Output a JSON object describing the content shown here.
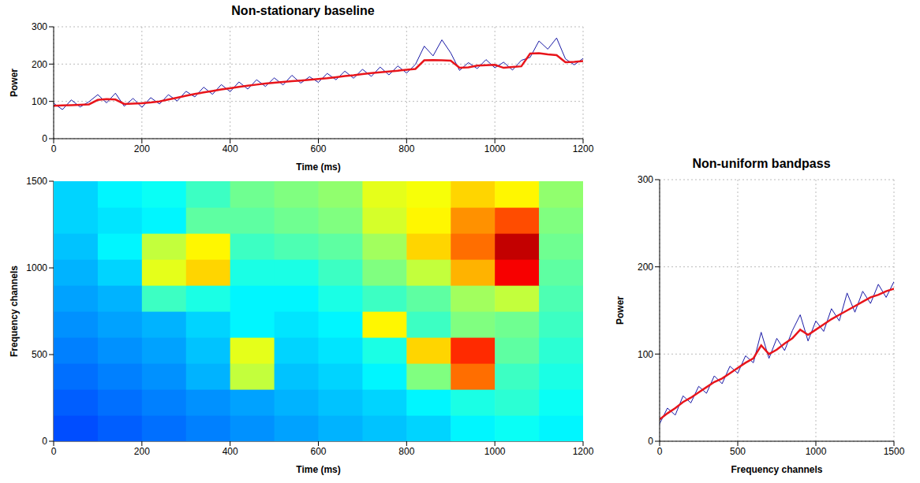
{
  "chart_data": [
    {
      "type": "line",
      "title": "Non-stationary baseline",
      "xlabel": "Time (ms)",
      "ylabel": "Power",
      "x": [
        0,
        20,
        40,
        60,
        80,
        100,
        120,
        140,
        160,
        180,
        200,
        220,
        240,
        260,
        280,
        300,
        320,
        340,
        360,
        380,
        400,
        420,
        440,
        460,
        480,
        500,
        520,
        540,
        560,
        580,
        600,
        620,
        640,
        660,
        680,
        700,
        720,
        740,
        760,
        780,
        800,
        820,
        840,
        860,
        880,
        900,
        920,
        940,
        960,
        980,
        1000,
        1020,
        1040,
        1060,
        1080,
        1100,
        1120,
        1140,
        1160,
        1180,
        1200
      ],
      "series": [
        {
          "color": "#1a1aa6",
          "values": [
            95,
            78,
            104,
            85,
            99,
            118,
            96,
            122,
            87,
            108,
            84,
            110,
            93,
            118,
            101,
            127,
            112,
            138,
            119,
            145,
            126,
            152,
            133,
            158,
            140,
            163,
            144,
            170,
            149,
            166,
            151,
            175,
            158,
            181,
            162,
            186,
            167,
            192,
            171,
            195,
            176,
            199,
            248,
            222,
            265,
            230,
            183,
            204,
            188,
            212,
            190,
            205,
            184,
            210,
            218,
            262,
            240,
            270,
            214,
            198,
            215
          ]
        },
        {
          "color": "#e8151b",
          "values": [
            88,
            89,
            90,
            91,
            92,
            104,
            106,
            105,
            93,
            94,
            95,
            97,
            100,
            105,
            110,
            115,
            120,
            124,
            128,
            132,
            135,
            139,
            142,
            145,
            148,
            150,
            152,
            154,
            156,
            158,
            160,
            162,
            165,
            168,
            170,
            173,
            176,
            178,
            180,
            182,
            185,
            187,
            210,
            211,
            210,
            209,
            190,
            191,
            196,
            197,
            198,
            190,
            192,
            194,
            228,
            229,
            226,
            224,
            205,
            206,
            208
          ]
        }
      ],
      "xlim": [
        0,
        1200
      ],
      "xticks": [
        0,
        200,
        400,
        600,
        800,
        1000,
        1200
      ],
      "ylim": [
        0,
        300
      ],
      "yticks": [
        0,
        100,
        200,
        300
      ],
      "grid": true
    },
    {
      "type": "heatmap",
      "xlabel": "Time (ms)",
      "ylabel": "Frequency channels",
      "x": [
        50,
        150,
        250,
        350,
        450,
        550,
        650,
        750,
        850,
        950,
        1050,
        1150
      ],
      "y": [
        75,
        225,
        375,
        525,
        675,
        825,
        975,
        1125,
        1275,
        1425
      ],
      "cells": [
        [
          60,
          65,
          70,
          75,
          80,
          85,
          90,
          95,
          100,
          110,
          115,
          110
        ],
        [
          65,
          70,
          75,
          80,
          85,
          90,
          95,
          100,
          110,
          120,
          125,
          115
        ],
        [
          70,
          75,
          80,
          90,
          170,
          95,
          100,
          110,
          150,
          230,
          130,
          120
        ],
        [
          75,
          80,
          85,
          95,
          180,
          100,
          105,
          120,
          200,
          250,
          140,
          125
        ],
        [
          80,
          85,
          90,
          100,
          110,
          105,
          110,
          190,
          130,
          150,
          145,
          130
        ],
        [
          85,
          90,
          130,
          120,
          110,
          110,
          120,
          130,
          140,
          160,
          170,
          135
        ],
        [
          90,
          100,
          180,
          200,
          120,
          120,
          130,
          150,
          170,
          210,
          265,
          140
        ],
        [
          95,
          110,
          170,
          190,
          130,
          135,
          140,
          160,
          200,
          230,
          280,
          145
        ],
        [
          100,
          105,
          110,
          140,
          140,
          145,
          150,
          175,
          190,
          220,
          240,
          150
        ],
        [
          100,
          110,
          115,
          130,
          145,
          150,
          155,
          180,
          185,
          200,
          190,
          155
        ]
      ],
      "color_range": [
        0,
        300
      ],
      "xlim": [
        0,
        1200
      ],
      "xticks": [
        0,
        200,
        400,
        600,
        800,
        1000,
        1200
      ],
      "ylim": [
        0,
        1500
      ],
      "yticks": [
        0,
        500,
        1000,
        1500
      ]
    },
    {
      "type": "line",
      "title": "Non-uniform bandpass",
      "xlabel": "Frequency channels",
      "ylabel": "Power",
      "x": [
        0,
        50,
        100,
        150,
        200,
        250,
        300,
        350,
        400,
        450,
        500,
        550,
        600,
        650,
        700,
        750,
        800,
        850,
        900,
        950,
        1000,
        1050,
        1100,
        1150,
        1200,
        1250,
        1300,
        1350,
        1400,
        1450,
        1500
      ],
      "series": [
        {
          "color": "#1a1aa6",
          "values": [
            20,
            38,
            30,
            52,
            44,
            63,
            55,
            75,
            66,
            86,
            78,
            98,
            90,
            125,
            95,
            118,
            104,
            127,
            145,
            115,
            138,
            126,
            152,
            138,
            170,
            148,
            172,
            158,
            180,
            165,
            183
          ]
        },
        {
          "color": "#e8151b",
          "values": [
            25,
            32,
            38,
            45,
            50,
            56,
            62,
            68,
            72,
            78,
            84,
            90,
            95,
            110,
            100,
            105,
            112,
            118,
            128,
            122,
            128,
            134,
            140,
            145,
            150,
            155,
            160,
            165,
            168,
            172,
            175
          ]
        }
      ],
      "xlim": [
        0,
        1500
      ],
      "xticks": [
        0,
        500,
        1000,
        1500
      ],
      "ylim": [
        0,
        300
      ],
      "yticks": [
        0,
        100,
        200,
        300
      ],
      "grid": true
    }
  ]
}
